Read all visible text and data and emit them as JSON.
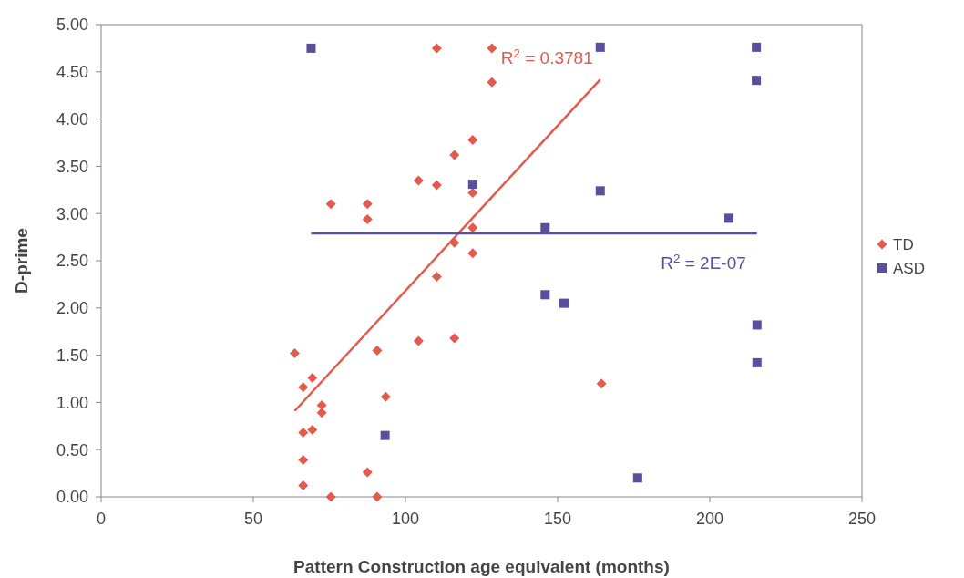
{
  "chart_data": {
    "type": "scatter",
    "xlabel": "Pattern Construction age equivalent (months)",
    "ylabel": "D-prime",
    "xlim": [
      0,
      250
    ],
    "xticks": [
      0,
      50,
      100,
      150,
      200,
      250
    ],
    "ylim": [
      0,
      5
    ],
    "yticks": [
      {
        "value": 0,
        "label": "0.00"
      },
      {
        "value": 0.5,
        "label": "0.50"
      },
      {
        "value": 1,
        "label": "1.00"
      },
      {
        "value": 1.5,
        "label": "1.50"
      },
      {
        "value": 2,
        "label": "2.00"
      },
      {
        "value": 2.5,
        "label": "2.50"
      },
      {
        "value": 3,
        "label": "3.00"
      },
      {
        "value": 3.5,
        "label": "3.50"
      },
      {
        "value": 4,
        "label": "4.00"
      },
      {
        "value": 4.5,
        "label": "4.50"
      },
      {
        "value": 5,
        "label": "5.00"
      }
    ],
    "grid": false,
    "legend": "right",
    "series": [
      {
        "name": "TD",
        "type": "scatter",
        "marker": "diamond",
        "color": "#e35a4e",
        "x": [
          63.6,
          69.4,
          66.4,
          72.5,
          72.5,
          66.4,
          69.4,
          66.4,
          66.4,
          75.5,
          87.5,
          90.7,
          93.5,
          90.7,
          104.3,
          116.1,
          110.3,
          110.3,
          128.4,
          128.4,
          122.1,
          116.1,
          104.3,
          110.3,
          122.1,
          75.5,
          87.5,
          87.5,
          122.1,
          116.1,
          122.1,
          164.4
        ],
        "values": [
          1.52,
          1.26,
          1.16,
          0.97,
          0.89,
          0.68,
          0.71,
          0.39,
          0.12,
          0,
          0.26,
          0,
          1.06,
          1.55,
          1.65,
          1.68,
          2.33,
          4.75,
          4.75,
          4.39,
          3.78,
          3.62,
          3.35,
          3.3,
          3.22,
          3.1,
          3.1,
          2.94,
          2.85,
          2.69,
          2.58,
          1.2
        ]
      },
      {
        "name": "ASD",
        "type": "scatter",
        "marker": "square",
        "color": "#5a4f9c",
        "x": [
          93.3,
          69,
          122.1,
          164,
          215.3,
          215.3,
          164,
          206.3,
          145.9,
          145.9,
          152.1,
          215.5,
          215.5,
          176.3
        ],
        "values": [
          0.65,
          4.75,
          3.31,
          4.76,
          4.76,
          4.41,
          3.24,
          2.95,
          2.85,
          2.14,
          2.05,
          1.82,
          1.42,
          0.2
        ]
      },
      {
        "type": "line",
        "marker": "none",
        "color": "#e35a4e",
        "x": [
          63.6,
          164
        ],
        "values": [
          0.91,
          4.42
        ]
      },
      {
        "type": "line",
        "marker": "none",
        "color": "#5a4f9c",
        "x": [
          69,
          215.5
        ],
        "values": [
          2.79,
          2.79
        ]
      }
    ],
    "annotations": [
      "R$^{2}$ = 0.3781",
      "R$^{2}$ = 2E-07"
    ]
  }
}
